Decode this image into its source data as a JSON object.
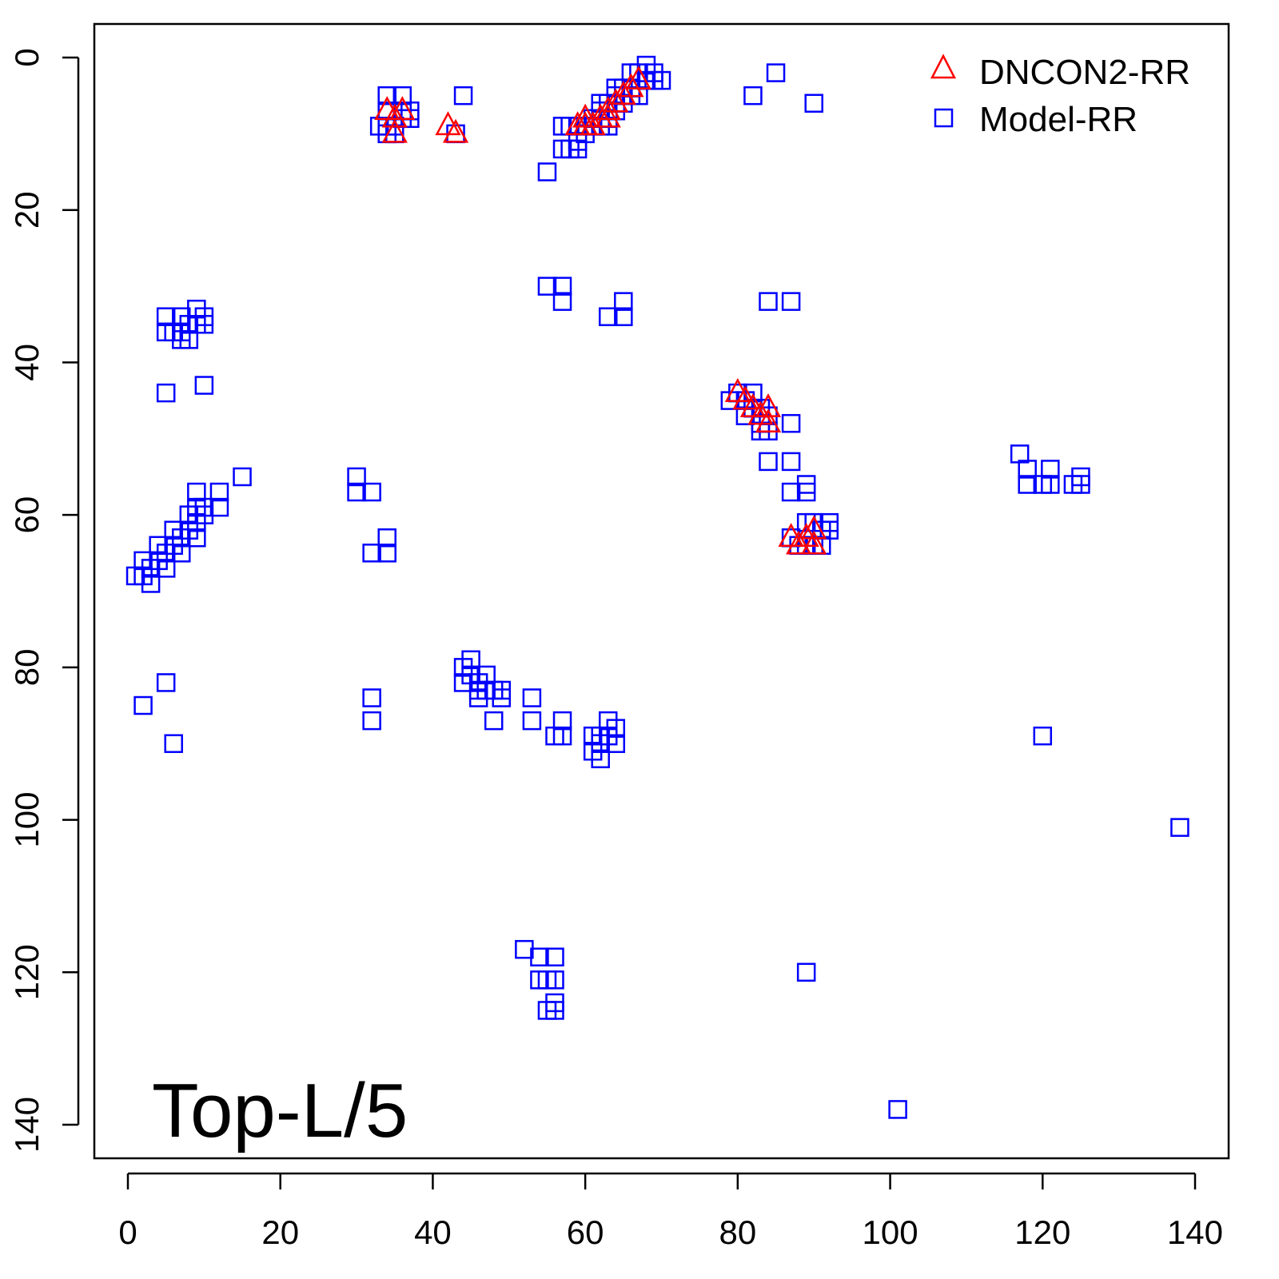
{
  "chart_data": {
    "type": "scatter",
    "title": "",
    "annotation": "Top-L/5",
    "xlabel": "",
    "ylabel": "",
    "xlim": [
      -4.5,
      144.3
    ],
    "ylim": [
      -4.5,
      144.3
    ],
    "y_reversed": true,
    "x_ticks": [
      0,
      20,
      40,
      60,
      80,
      100,
      120,
      140
    ],
    "y_ticks": [
      0,
      20,
      40,
      60,
      80,
      100,
      120,
      140
    ],
    "grid": false,
    "legend_position": "top-right",
    "colors": {
      "dncon": "#ff0000",
      "model": "#0000ff"
    },
    "series": [
      {
        "name": "DNCON2-RR",
        "marker": "triangle",
        "points": [
          [
            34,
            7
          ],
          [
            35,
            8
          ],
          [
            36,
            7
          ],
          [
            35,
            10
          ],
          [
            42,
            9
          ],
          [
            43,
            10
          ],
          [
            59,
            9
          ],
          [
            60,
            8
          ],
          [
            60,
            9
          ],
          [
            61,
            9
          ],
          [
            62,
            8
          ],
          [
            63,
            8
          ],
          [
            63,
            7
          ],
          [
            64,
            6
          ],
          [
            65,
            5
          ],
          [
            66,
            4
          ],
          [
            67,
            3
          ],
          [
            80,
            44
          ],
          [
            81,
            45
          ],
          [
            82,
            46
          ],
          [
            83,
            47
          ],
          [
            84,
            46
          ],
          [
            84,
            48
          ],
          [
            87,
            63
          ],
          [
            88,
            64
          ],
          [
            89,
            63
          ],
          [
            90,
            62
          ],
          [
            90,
            64
          ]
        ]
      },
      {
        "name": "Model-RR",
        "marker": "square",
        "points": [
          [
            34,
            5
          ],
          [
            36,
            5
          ],
          [
            34,
            7
          ],
          [
            36,
            7
          ],
          [
            37,
            7
          ],
          [
            37,
            8
          ],
          [
            33,
            9
          ],
          [
            34,
            9
          ],
          [
            35,
            9
          ],
          [
            34,
            10
          ],
          [
            35,
            10
          ],
          [
            36,
            8
          ],
          [
            44,
            5
          ],
          [
            43,
            10
          ],
          [
            55,
            15
          ],
          [
            57,
            12
          ],
          [
            58,
            12
          ],
          [
            59,
            12
          ],
          [
            57,
            9
          ],
          [
            58,
            9
          ],
          [
            59,
            9
          ],
          [
            59,
            11
          ],
          [
            60,
            10
          ],
          [
            60,
            9
          ],
          [
            61,
            9
          ],
          [
            62,
            9
          ],
          [
            61,
            8
          ],
          [
            62,
            7
          ],
          [
            62,
            6
          ],
          [
            63,
            6
          ],
          [
            63,
            8
          ],
          [
            63,
            9
          ],
          [
            64,
            5
          ],
          [
            64,
            4
          ],
          [
            65,
            4
          ],
          [
            65,
            6
          ],
          [
            66,
            2
          ],
          [
            66,
            4
          ],
          [
            67,
            2
          ],
          [
            67,
            5
          ],
          [
            68,
            1
          ],
          [
            68,
            3
          ],
          [
            69,
            2
          ],
          [
            69,
            3
          ],
          [
            70,
            3
          ],
          [
            66,
            5
          ],
          [
            64,
            7
          ],
          [
            82,
            5
          ],
          [
            85,
            2
          ],
          [
            90,
            6
          ],
          [
            5,
            34
          ],
          [
            5,
            36
          ],
          [
            7,
            34
          ],
          [
            7,
            36
          ],
          [
            7,
            37
          ],
          [
            8,
            35
          ],
          [
            8,
            37
          ],
          [
            9,
            33
          ],
          [
            9,
            35
          ],
          [
            10,
            34
          ],
          [
            10,
            35
          ],
          [
            6,
            36
          ],
          [
            5,
            44
          ],
          [
            10,
            43
          ],
          [
            55,
            30
          ],
          [
            57,
            30
          ],
          [
            57,
            32
          ],
          [
            63,
            34
          ],
          [
            65,
            32
          ],
          [
            65,
            34
          ],
          [
            84,
            32
          ],
          [
            87,
            32
          ],
          [
            79,
            45
          ],
          [
            80,
            44
          ],
          [
            81,
            45
          ],
          [
            81,
            47
          ],
          [
            82,
            44
          ],
          [
            82,
            46
          ],
          [
            83,
            46
          ],
          [
            83,
            48
          ],
          [
            83,
            49
          ],
          [
            84,
            47
          ],
          [
            84,
            49
          ],
          [
            87,
            48
          ],
          [
            84,
            53
          ],
          [
            87,
            53
          ],
          [
            87,
            57
          ],
          [
            89,
            56
          ],
          [
            89,
            57
          ],
          [
            89,
            61
          ],
          [
            90,
            61
          ],
          [
            91,
            62
          ],
          [
            92,
            61
          ],
          [
            92,
            62
          ],
          [
            87,
            63
          ],
          [
            88,
            64
          ],
          [
            89,
            64
          ],
          [
            90,
            64
          ],
          [
            91,
            64
          ],
          [
            117,
            52
          ],
          [
            118,
            54
          ],
          [
            118,
            56
          ],
          [
            120,
            56
          ],
          [
            121,
            54
          ],
          [
            121,
            56
          ],
          [
            124,
            56
          ],
          [
            125,
            55
          ],
          [
            125,
            56
          ],
          [
            1,
            68
          ],
          [
            2,
            66
          ],
          [
            2,
            68
          ],
          [
            3,
            67
          ],
          [
            3,
            69
          ],
          [
            4,
            64
          ],
          [
            4,
            66
          ],
          [
            5,
            65
          ],
          [
            5,
            67
          ],
          [
            6,
            62
          ],
          [
            6,
            64
          ],
          [
            7,
            63
          ],
          [
            7,
            65
          ],
          [
            8,
            60
          ],
          [
            8,
            62
          ],
          [
            9,
            57
          ],
          [
            9,
            59
          ],
          [
            9,
            61
          ],
          [
            9,
            63
          ],
          [
            10,
            59
          ],
          [
            10,
            60
          ],
          [
            12,
            57
          ],
          [
            12,
            59
          ],
          [
            15,
            55
          ],
          [
            30,
            55
          ],
          [
            30,
            57
          ],
          [
            32,
            57
          ],
          [
            32,
            65
          ],
          [
            34,
            63
          ],
          [
            34,
            65
          ],
          [
            2,
            85
          ],
          [
            5,
            82
          ],
          [
            6,
            90
          ],
          [
            32,
            84
          ],
          [
            32,
            87
          ],
          [
            44,
            80
          ],
          [
            44,
            82
          ],
          [
            45,
            79
          ],
          [
            45,
            81
          ],
          [
            46,
            82
          ],
          [
            46,
            84
          ],
          [
            47,
            81
          ],
          [
            47,
            83
          ],
          [
            48,
            83
          ],
          [
            48,
            87
          ],
          [
            49,
            83
          ],
          [
            49,
            84
          ],
          [
            46,
            83
          ],
          [
            53,
            84
          ],
          [
            53,
            87
          ],
          [
            56,
            89
          ],
          [
            57,
            87
          ],
          [
            57,
            89
          ],
          [
            61,
            89
          ],
          [
            61,
            91
          ],
          [
            62,
            90
          ],
          [
            62,
            92
          ],
          [
            63,
            87
          ],
          [
            63,
            89
          ],
          [
            64,
            88
          ],
          [
            64,
            90
          ],
          [
            62,
            89
          ],
          [
            52,
            117
          ],
          [
            54,
            118
          ],
          [
            54,
            121
          ],
          [
            55,
            121
          ],
          [
            56,
            118
          ],
          [
            56,
            121
          ],
          [
            56,
            124
          ],
          [
            55,
            125
          ],
          [
            56,
            125
          ],
          [
            89,
            120
          ],
          [
            120,
            89
          ],
          [
            138,
            101
          ],
          [
            101,
            138
          ]
        ]
      }
    ]
  }
}
